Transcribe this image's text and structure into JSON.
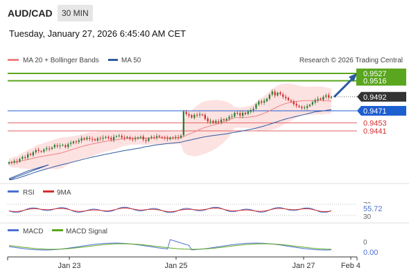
{
  "header": {
    "pair": "AUD/CAD",
    "timeframe": "30 MIN",
    "datetime": "Tuesday, January 27, 2026 6:45:40 AM CET"
  },
  "legend": {
    "ma20": "MA 20 + Bollinger Bands",
    "ma50": "MA 50",
    "credit": "Research © 2026 Trading Central"
  },
  "colors": {
    "bull": "#2e7d32",
    "bear": "#d32f2f",
    "ma20": "#f08080",
    "ma50": "#2c5aa0",
    "band_fill": "#fde2e2",
    "green_level": "#5aa61e",
    "blue_level": "#1e5fd0",
    "red_level": "#e06060",
    "rsi": "#4a6fd0",
    "rsi_ma": "#d32f2f",
    "macd": "#4a6fd0",
    "macd_signal": "#5aa61e",
    "arrow": "#2c5aa0"
  },
  "levels": {
    "r2": "0.9527",
    "r1": "0.9516",
    "last": "0.9492",
    "pivot": "0.9471",
    "s1": "0.9453",
    "s2": "0.9441"
  },
  "rsi_panel": {
    "label": "RSI",
    "ma_label": "9MA",
    "value": "55.72",
    "upper": "70",
    "lower": "30"
  },
  "macd_panel": {
    "label": "MACD",
    "signal_label": "MACD Signal",
    "value": "0.00",
    "zero": "0"
  },
  "xaxis": {
    "ticks": [
      "Jan 23",
      "Jan 25",
      "Jan 27",
      "Feb 4"
    ]
  },
  "chart_data": {
    "type": "candlestick",
    "price_scale_ref": {
      "0.9527": 0.9527,
      "0.9441": 0.9441
    },
    "close": [
      0.9394,
      0.9393,
      0.9396,
      0.9395,
      0.9399,
      0.9402,
      0.9401,
      0.9406,
      0.9405,
      0.9409,
      0.9412,
      0.9411,
      0.941,
      0.9413,
      0.9415,
      0.9414,
      0.9416,
      0.942,
      0.9418,
      0.9419,
      0.942,
      0.9417,
      0.9421,
      0.9423,
      0.9425,
      0.9424,
      0.9427,
      0.943,
      0.9428,
      0.9431,
      0.9429,
      0.9428,
      0.9427,
      0.943,
      0.9429,
      0.9431,
      0.9432,
      0.943,
      0.9428,
      0.9432,
      0.9433,
      0.9434,
      0.9431,
      0.943,
      0.9432,
      0.9429,
      0.9428,
      0.943,
      0.9431,
      0.9432,
      0.9428,
      0.9426,
      0.943,
      0.9432,
      0.9431,
      0.9433,
      0.9432,
      0.9431,
      0.943,
      0.9429,
      0.9431,
      0.943,
      0.9432,
      0.9431,
      0.9434,
      0.947,
      0.9466,
      0.9464,
      0.9461,
      0.9465,
      0.9464,
      0.9466,
      0.9465,
      0.9459,
      0.9455,
      0.9456,
      0.9453,
      0.9456,
      0.9454,
      0.9458,
      0.9457,
      0.9459,
      0.9462,
      0.9463,
      0.9468,
      0.9467,
      0.9464,
      0.9468,
      0.9466,
      0.947,
      0.9472,
      0.9474,
      0.9481,
      0.9485,
      0.9483,
      0.9486,
      0.9489,
      0.9495,
      0.95,
      0.9494,
      0.9498,
      0.9496,
      0.9492,
      0.949,
      0.9487,
      0.9485,
      0.9481,
      0.9479,
      0.9477,
      0.9475,
      0.9476,
      0.9478,
      0.948,
      0.9484,
      0.9487,
      0.9489,
      0.9488,
      0.9492,
      0.9494,
      0.9491,
      0.9492
    ],
    "ma_reference_note": ""
  }
}
